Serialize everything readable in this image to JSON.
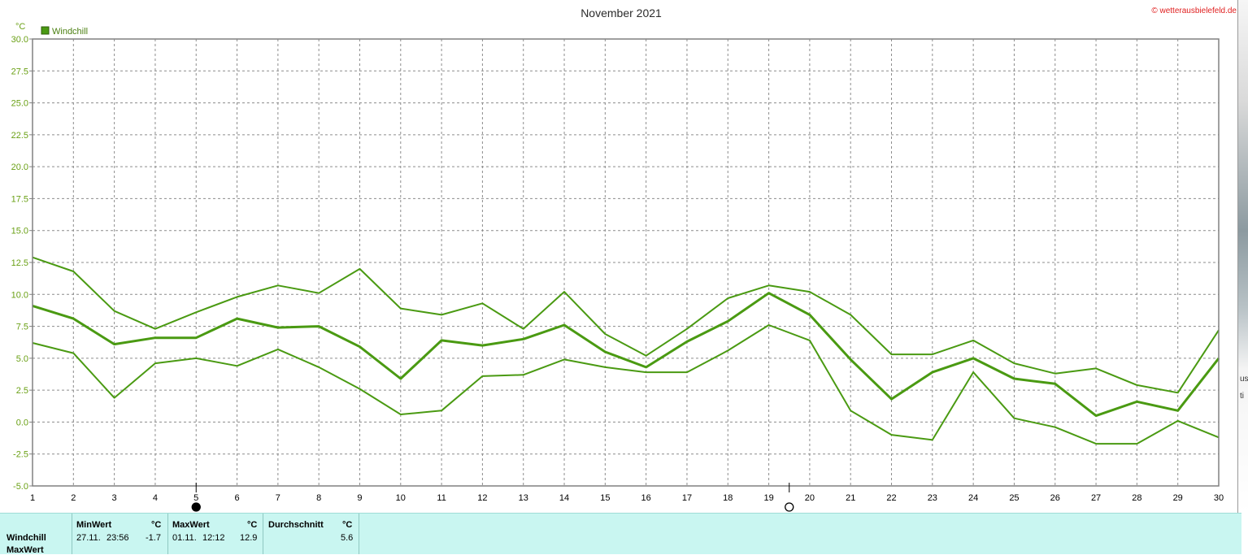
{
  "title": "November 2021",
  "copyright": "© wetterausbielefeld.de",
  "colors": {
    "series": "#4a9a12",
    "title": "#2b2b2b",
    "axis_text": "#6aa015",
    "copyright": "#e02020",
    "grid": "#8c8c8c",
    "stats_bg": "#c9f6f1"
  },
  "chart_data": {
    "type": "line",
    "ylabel": "°C",
    "legend": {
      "label": "Windchill",
      "placement": "top-left"
    },
    "ylim": [
      -5.0,
      30.0
    ],
    "ytick_step": 2.5,
    "x": [
      1,
      2,
      3,
      4,
      5,
      6,
      7,
      8,
      9,
      10,
      11,
      12,
      13,
      14,
      15,
      16,
      17,
      18,
      19,
      20,
      21,
      22,
      23,
      24,
      25,
      26,
      27,
      28,
      29,
      30
    ],
    "series": [
      {
        "role": "max",
        "values": [
          12.9,
          11.8,
          8.7,
          7.3,
          8.6,
          9.8,
          10.7,
          10.1,
          12.0,
          8.9,
          8.4,
          9.3,
          7.3,
          10.2,
          6.9,
          5.2,
          7.3,
          9.7,
          10.7,
          10.2,
          8.4,
          5.3,
          5.3,
          6.4,
          4.6,
          3.8,
          4.2,
          2.9,
          2.3,
          7.2
        ]
      },
      {
        "role": "average",
        "values": [
          9.1,
          8.1,
          6.1,
          6.6,
          6.6,
          8.1,
          7.4,
          7.5,
          5.9,
          3.4,
          6.4,
          6.0,
          6.5,
          7.6,
          5.5,
          4.3,
          6.3,
          7.9,
          10.1,
          8.4,
          4.9,
          1.8,
          3.9,
          5.0,
          3.4,
          3.0,
          0.5,
          1.6,
          0.9,
          5.0
        ]
      },
      {
        "role": "min",
        "values": [
          6.2,
          5.4,
          1.9,
          4.6,
          5.0,
          4.4,
          5.7,
          4.3,
          2.6,
          0.6,
          0.9,
          3.6,
          3.7,
          4.9,
          4.3,
          3.9,
          3.9,
          5.6,
          7.6,
          6.4,
          0.9,
          -1.0,
          -1.4,
          3.9,
          0.3,
          -0.4,
          -1.7,
          -1.7,
          0.1,
          -1.2
        ]
      }
    ],
    "moon_phases": [
      {
        "day": 5,
        "phase": "new-moon"
      },
      {
        "day": 19.5,
        "phase": "full-moon"
      }
    ]
  },
  "stats": {
    "row_labels": [
      "Windchill",
      "MaxWert"
    ],
    "min": {
      "header": "MinWert",
      "unit": "°C",
      "date": "27.11.",
      "time": "23:56",
      "value": "-1.7"
    },
    "max": {
      "header": "MaxWert",
      "unit": "°C",
      "date": "01.11.",
      "time": "12:12",
      "value": "12.9"
    },
    "avg": {
      "header": "Durchschnitt",
      "unit": "°C",
      "value": "5.6"
    }
  },
  "side_strip": {
    "lines": [
      "us",
      "ti"
    ]
  }
}
